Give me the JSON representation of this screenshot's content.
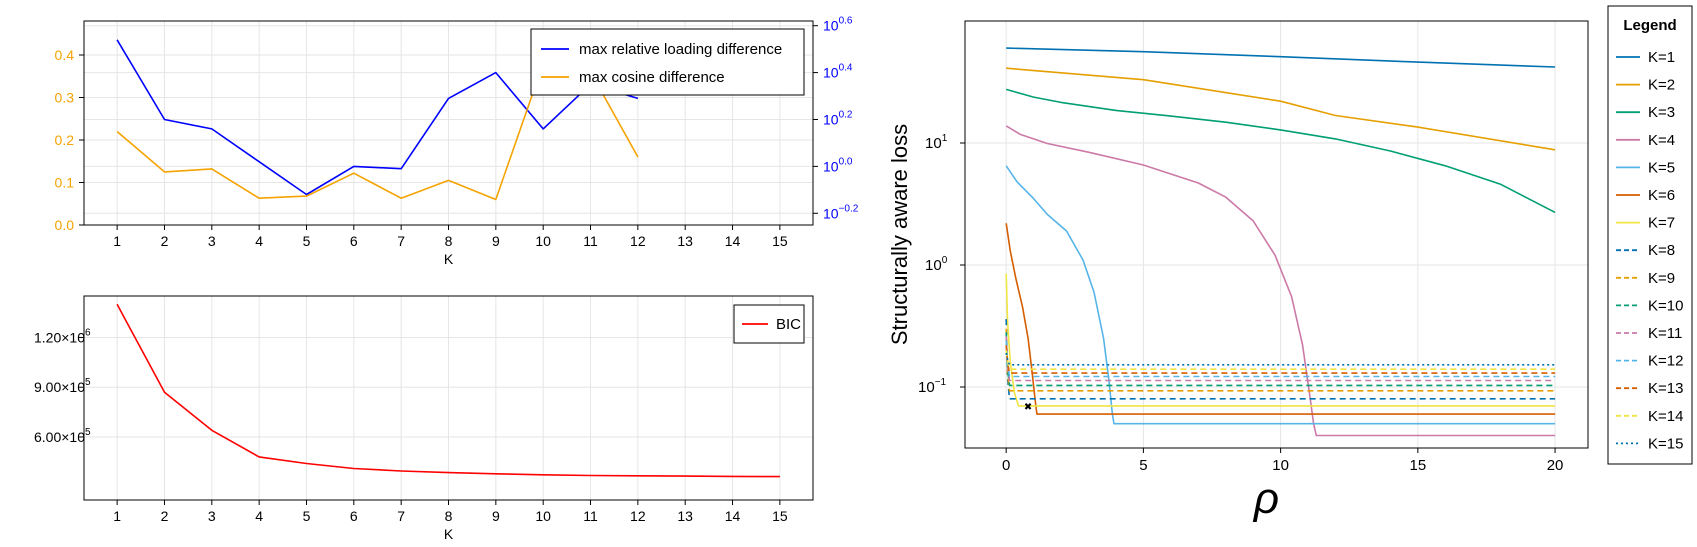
{
  "chart_data": [
    {
      "type": "line",
      "panel": "top-left",
      "xlabel": "K",
      "x": [
        1,
        2,
        3,
        4,
        5,
        6,
        7,
        8,
        9,
        10,
        11,
        12,
        13,
        14,
        15
      ],
      "xticks": [
        "1",
        "2",
        "3",
        "4",
        "5",
        "6",
        "7",
        "8",
        "9",
        "10",
        "11",
        "12",
        "13",
        "14",
        "15"
      ],
      "y_left": {
        "color": "#f5a300",
        "ylim": [
          0,
          0.48
        ],
        "ticks": [
          "0.0",
          "0.1",
          "0.2",
          "0.3",
          "0.4"
        ]
      },
      "y_right": {
        "color": "#0000ff",
        "scale": "log10",
        "ylim": [
          -0.25,
          0.62
        ],
        "ticks": [
          -0.2,
          0.0,
          0.2,
          0.4,
          0.6
        ],
        "tick_base": "10"
      },
      "legend": {
        "placement": "top-right"
      },
      "series": [
        {
          "name": "max relative loading difference",
          "axis": "right",
          "color": "#0000ff",
          "x": [
            1,
            2,
            3,
            4,
            5,
            6,
            7,
            8,
            9,
            10,
            11,
            12
          ],
          "log10_values": [
            0.54,
            0.2,
            0.16,
            0.02,
            -0.12,
            0.0,
            -0.01,
            0.29,
            0.4,
            0.16,
            0.35,
            0.29
          ]
        },
        {
          "name": "max cosine difference",
          "axis": "left",
          "color": "#f5a300",
          "x": [
            1,
            2,
            3,
            4,
            5,
            6,
            7,
            8,
            9,
            10,
            11,
            12
          ],
          "values": [
            0.22,
            0.125,
            0.132,
            0.063,
            0.068,
            0.122,
            0.063,
            0.105,
            0.06,
            0.38,
            0.36,
            0.16
          ]
        }
      ],
      "grid": true
    },
    {
      "type": "line",
      "panel": "bottom-left",
      "xlabel": "K",
      "x": [
        1,
        2,
        3,
        4,
        5,
        6,
        7,
        8,
        9,
        10,
        11,
        12,
        13,
        14,
        15
      ],
      "xticks": [
        "1",
        "2",
        "3",
        "4",
        "5",
        "6",
        "7",
        "8",
        "9",
        "10",
        "11",
        "12",
        "13",
        "14",
        "15"
      ],
      "ylim": [
        220000,
        1450000
      ],
      "yticks": [
        {
          "value": 1200000,
          "mantissa": "1.20×10",
          "exp": "6"
        },
        {
          "value": 900000,
          "mantissa": "9.00×10",
          "exp": "5"
        },
        {
          "value": 600000,
          "mantissa": "6.00×10",
          "exp": "5"
        }
      ],
      "legend": {
        "placement": "top-right"
      },
      "series": [
        {
          "name": "BIC",
          "color": "#ff0000",
          "values": [
            1400000,
            870000,
            640000,
            480000,
            440000,
            410000,
            395000,
            385000,
            378000,
            372000,
            368000,
            366000,
            364000,
            362000,
            361000
          ]
        }
      ],
      "grid": true
    },
    {
      "type": "line",
      "panel": "right",
      "xlabel": "ρ",
      "ylabel": "Structurally aware loss",
      "xlim": [
        -1.5,
        21.2
      ],
      "xticks": [
        "0",
        "5",
        "10",
        "15",
        "20"
      ],
      "yscale": "log10",
      "ylim_log10": [
        -1.5,
        2.0
      ],
      "yticks": [
        {
          "log10": 1,
          "base": "10",
          "exp": "1"
        },
        {
          "log10": 0,
          "base": "10",
          "exp": "0"
        },
        {
          "log10": -1,
          "base": "10",
          "exp": "−1"
        }
      ],
      "legend": {
        "title": "Legend",
        "placement": "outside-right"
      },
      "series": [
        {
          "name": "K=1",
          "color": "#0072b2",
          "dash": "solid",
          "x": [
            0,
            5,
            10,
            15,
            20
          ],
          "values": [
            60,
            56,
            51,
            46,
            42
          ]
        },
        {
          "name": "K=2",
          "color": "#e69f00",
          "dash": "solid",
          "x": [
            0,
            5,
            10,
            12,
            15,
            20
          ],
          "values": [
            41,
            33,
            22,
            16.8,
            13.5,
            8.8
          ]
        },
        {
          "name": "K=3",
          "color": "#009e73",
          "dash": "solid",
          "x": [
            0,
            1,
            2,
            4,
            6,
            8,
            10,
            12,
            14,
            16,
            18,
            20
          ],
          "values": [
            27.5,
            23.8,
            21.5,
            18.5,
            16.6,
            14.8,
            12.8,
            10.8,
            8.6,
            6.5,
            4.6,
            2.7
          ]
        },
        {
          "name": "K=4",
          "color": "#cc79a7",
          "dash": "solid",
          "x": [
            0,
            0.5,
            1.5,
            3,
            5,
            7,
            8,
            9,
            9.8,
            10.4,
            10.8,
            11.05,
            11.2,
            11.3,
            20
          ],
          "values": [
            13.8,
            11.8,
            9.9,
            8.4,
            6.6,
            4.7,
            3.6,
            2.3,
            1.2,
            0.55,
            0.22,
            0.09,
            0.05,
            0.04,
            0.04
          ]
        },
        {
          "name": "K=5",
          "color": "#56b4e9",
          "dash": "solid",
          "x": [
            0,
            0.4,
            1,
            1.5,
            2.2,
            2.8,
            3.2,
            3.55,
            3.75,
            3.87,
            3.93,
            20
          ],
          "values": [
            6.5,
            4.8,
            3.5,
            2.6,
            1.9,
            1.1,
            0.6,
            0.25,
            0.11,
            0.06,
            0.05,
            0.05
          ]
        },
        {
          "name": "K=6",
          "color": "#d55e00",
          "dash": "solid",
          "x": [
            0,
            0.15,
            0.35,
            0.6,
            0.8,
            0.95,
            1.05,
            1.12,
            20
          ],
          "values": [
            2.2,
            1.3,
            0.78,
            0.45,
            0.25,
            0.13,
            0.08,
            0.06,
            0.06
          ]
        },
        {
          "name": "K=7",
          "color": "#f0e442",
          "dash": "solid",
          "x": [
            0,
            0.05,
            0.15,
            0.3,
            0.45,
            20
          ],
          "values": [
            0.85,
            0.35,
            0.16,
            0.09,
            0.07,
            0.07
          ]
        },
        {
          "name": "K=8",
          "color": "#0072b2",
          "dash": "dashed",
          "x": [
            0,
            0.05,
            0.12,
            20
          ],
          "values": [
            0.36,
            0.12,
            0.08,
            0.08
          ]
        },
        {
          "name": "K=9",
          "color": "#e69f00",
          "dash": "dashed",
          "x": [
            0,
            0.05,
            0.12,
            20
          ],
          "values": [
            0.3,
            0.13,
            0.093,
            0.093
          ]
        },
        {
          "name": "K=10",
          "color": "#009e73",
          "dash": "dashed",
          "x": [
            0,
            0.05,
            0.12,
            20
          ],
          "values": [
            0.28,
            0.14,
            0.103,
            0.103
          ]
        },
        {
          "name": "K=11",
          "color": "#cc79a7",
          "dash": "dashed",
          "x": [
            0,
            0.05,
            0.12,
            20
          ],
          "values": [
            0.26,
            0.15,
            0.113,
            0.113
          ]
        },
        {
          "name": "K=12",
          "color": "#56b4e9",
          "dash": "dashed",
          "x": [
            0,
            0.05,
            0.12,
            20
          ],
          "values": [
            0.24,
            0.155,
            0.122,
            0.122
          ]
        },
        {
          "name": "K=13",
          "color": "#d55e00",
          "dash": "dashed",
          "x": [
            0,
            0.05,
            0.12,
            20
          ],
          "values": [
            0.22,
            0.16,
            0.13,
            0.13
          ]
        },
        {
          "name": "K=14",
          "color": "#f0e442",
          "dash": "dashed",
          "x": [
            0,
            0.05,
            0.12,
            20
          ],
          "values": [
            0.2,
            0.165,
            0.14,
            0.14
          ]
        },
        {
          "name": "K=15",
          "color": "#0072b2",
          "dash": "dotted",
          "x": [
            0,
            0.05,
            0.12,
            20
          ],
          "values": [
            0.19,
            0.17,
            0.152,
            0.152
          ]
        }
      ],
      "marker": {
        "symbol": "✖",
        "x": 0.8,
        "y": 0.07
      },
      "grid": true
    }
  ]
}
